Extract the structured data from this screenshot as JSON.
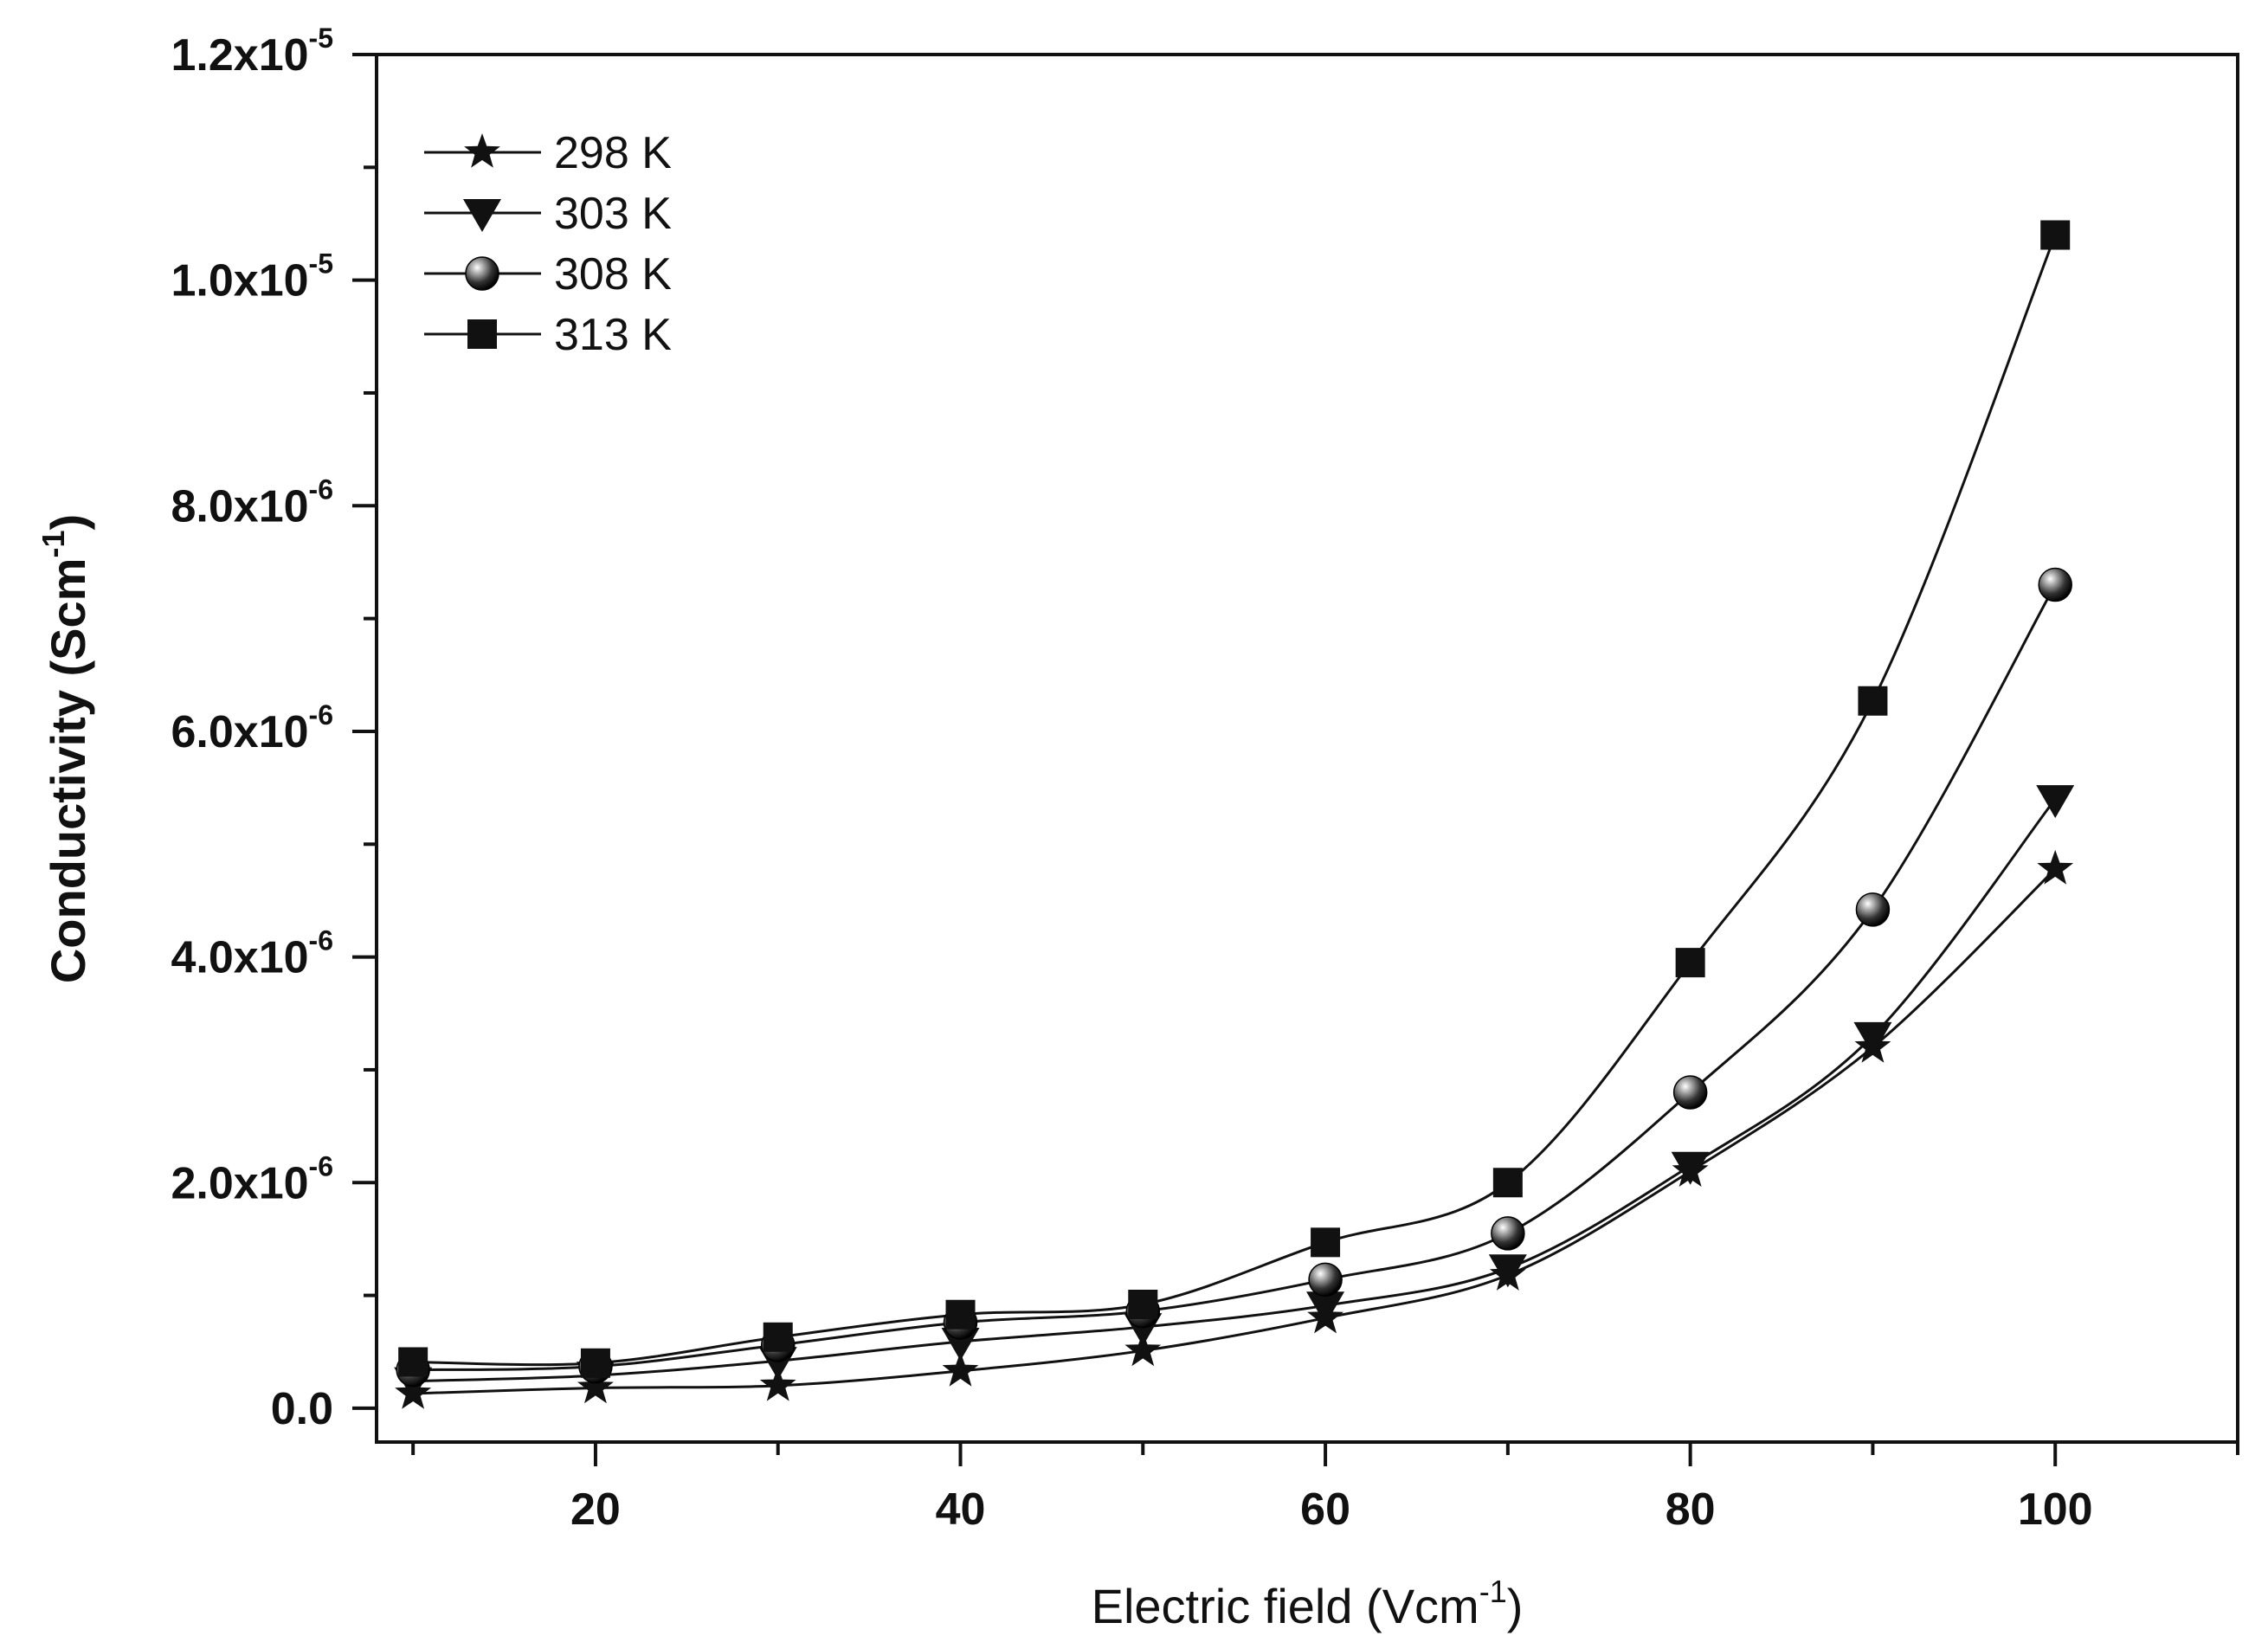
{
  "chart_data": {
    "type": "scatter",
    "title": "",
    "xlabel": {
      "base": "Electric field (Vcm",
      "sup": "-1",
      "end": ")"
    },
    "ylabel": {
      "base": "Conductivity (Scm",
      "sup": "-1",
      "end": ")"
    },
    "xlim": [
      8,
      110
    ],
    "ylim": [
      -3e-07,
      1.2e-05
    ],
    "grid": false,
    "legend_position": "top-left",
    "x_ticks": [
      {
        "value": 20,
        "label": "20"
      },
      {
        "value": 40,
        "label": "40"
      },
      {
        "value": 60,
        "label": "60"
      },
      {
        "value": 80,
        "label": "80"
      },
      {
        "value": 100,
        "label": "100"
      }
    ],
    "y_ticks": [
      {
        "value": 0,
        "label": "0.0",
        "exp": ""
      },
      {
        "value": 2e-06,
        "label": "2.0x10",
        "exp": "-6"
      },
      {
        "value": 4e-06,
        "label": "4.0x10",
        "exp": "-6"
      },
      {
        "value": 6e-06,
        "label": "6.0x10",
        "exp": "-6"
      },
      {
        "value": 8e-06,
        "label": "8.0x10",
        "exp": "-6"
      },
      {
        "value": 1e-05,
        "label": "1.0x10",
        "exp": "-5"
      },
      {
        "value": 1.2e-05,
        "label": "1.2x10",
        "exp": "-5"
      }
    ],
    "x": [
      10,
      20,
      30,
      40,
      50,
      60,
      70,
      80,
      90,
      100
    ],
    "series": [
      {
        "name": "298 K",
        "marker": "star",
        "values": [
          1.3e-07,
          1.8e-07,
          2e-07,
          3.3e-07,
          5.1e-07,
          8e-07,
          1.18e-06,
          2.1e-06,
          3.2e-06,
          4.78e-06
        ]
      },
      {
        "name": "303 K",
        "marker": "triangle-down",
        "values": [
          2.4e-07,
          2.9e-07,
          4.2e-07,
          5.9e-07,
          7.2e-07,
          9.1e-07,
          1.24e-06,
          2.15e-06,
          3.3e-06,
          5.4e-06
        ]
      },
      {
        "name": "308 K",
        "marker": "sphere",
        "values": [
          3.4e-07,
          3.7e-07,
          5.6e-07,
          7.6e-07,
          8.6e-07,
          1.14e-06,
          1.55e-06,
          2.8e-06,
          4.42e-06,
          7.3e-06
        ]
      },
      {
        "name": "313 K",
        "marker": "square",
        "values": [
          4.1e-07,
          4e-07,
          6.3e-07,
          8.3e-07,
          9.2e-07,
          1.47e-06,
          2e-06,
          3.95e-06,
          6.27e-06,
          1.04e-05
        ]
      }
    ]
  }
}
